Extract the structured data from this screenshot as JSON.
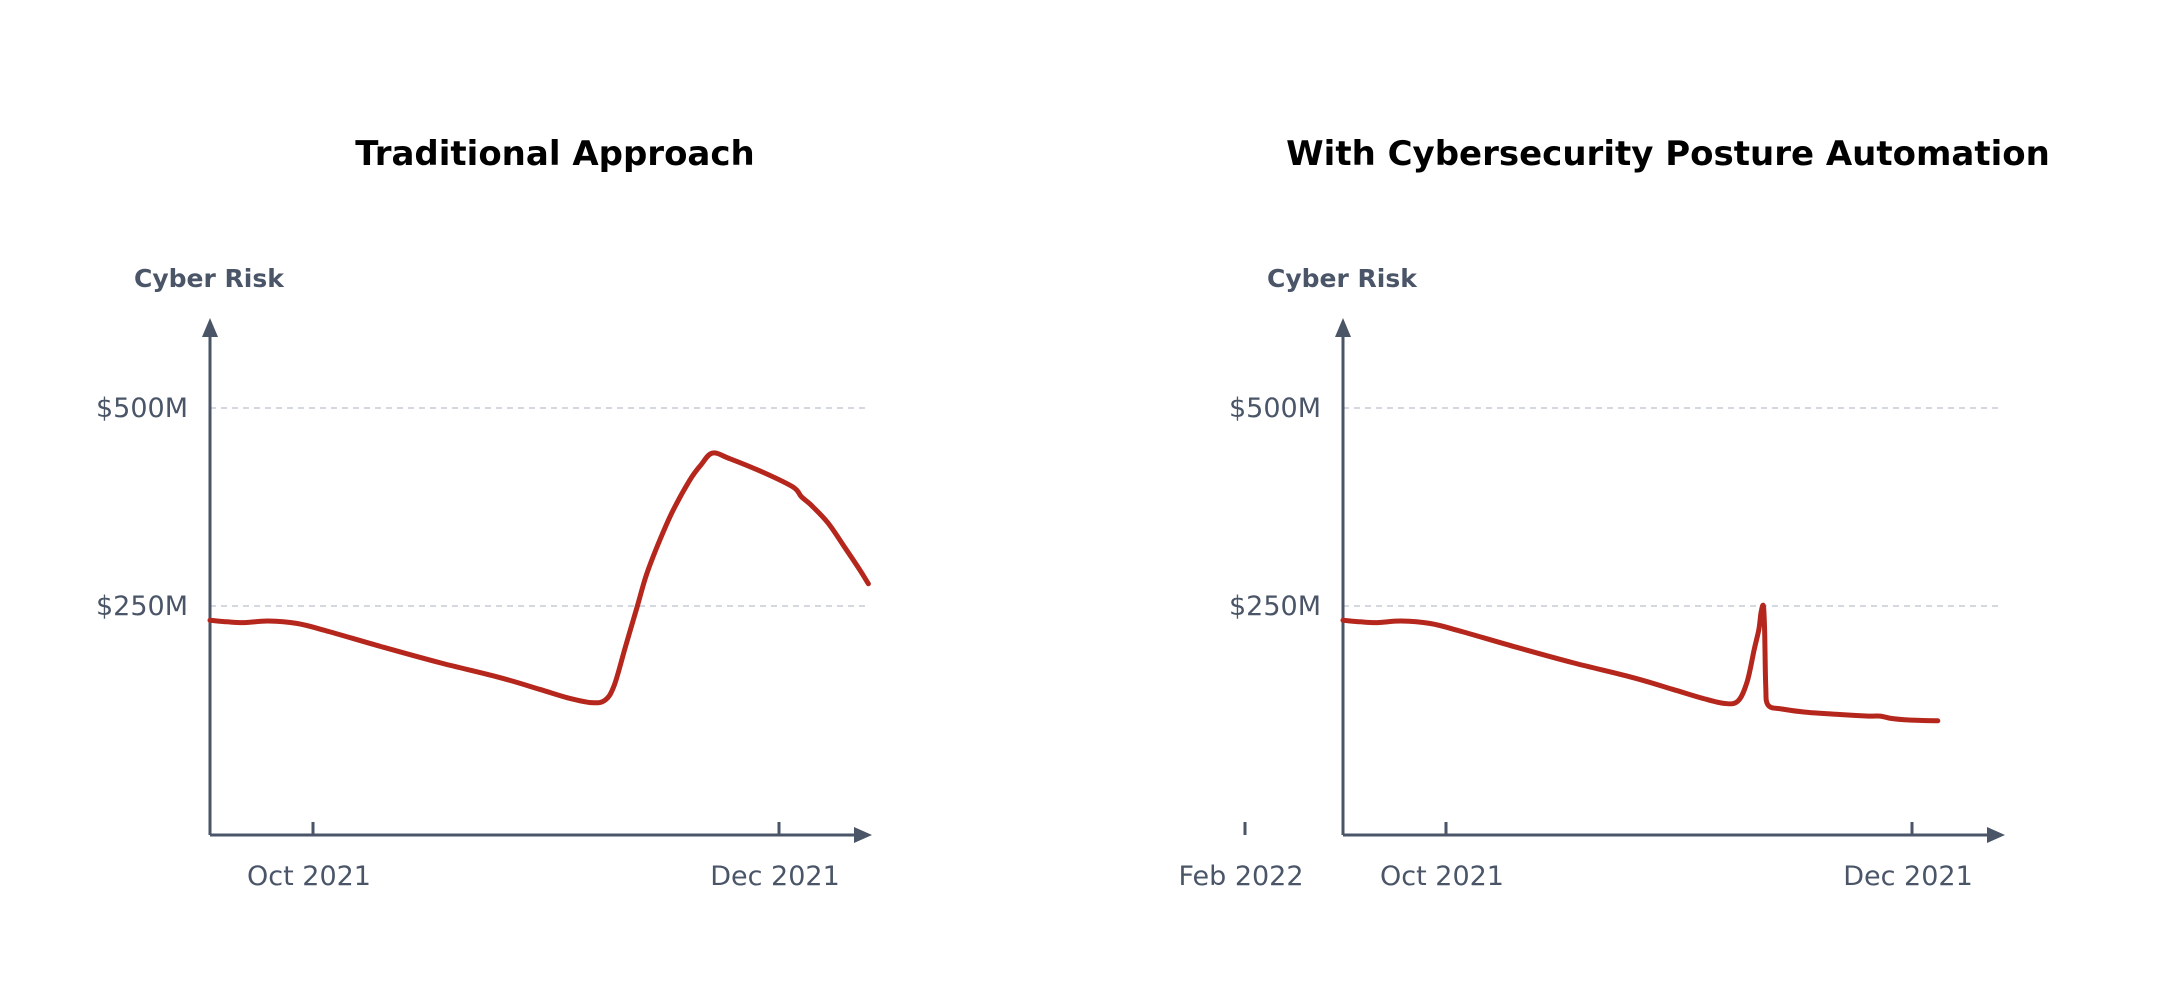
{
  "chart_data": [
    {
      "type": "line",
      "title": "Traditional Approach",
      "ylabel": "Cyber Risk",
      "xlabel": "",
      "x_ticks": [
        {
          "label": "Oct 2021",
          "value": 1.0
        },
        {
          "label": "Dec 2021",
          "value": 3.0
        },
        {
          "label": "Feb 2022",
          "value": 5.0
        }
      ],
      "y_ticks": [
        {
          "label": "$250M",
          "value": 250
        },
        {
          "label": "$500M",
          "value": 500
        }
      ],
      "xlim": [
        0.12,
        5.74
      ],
      "ylim": [
        -40,
        600
      ],
      "grid": "horizontal-dashed",
      "series": [
        {
          "name": "Cyber Risk",
          "color": "#b5271d",
          "points": [
            [
              0.0,
              232
            ],
            [
              0.15,
              230
            ],
            [
              0.3,
              229
            ],
            [
              0.5,
              231
            ],
            [
              0.75,
              228
            ],
            [
              1.0,
              219
            ],
            [
              1.5,
              198
            ],
            [
              2.0,
              178
            ],
            [
              2.5,
              160
            ],
            [
              2.85,
              145
            ],
            [
              3.1,
              134
            ],
            [
              3.3,
              128
            ],
            [
              3.42,
              131
            ],
            [
              3.5,
              150
            ],
            [
              3.6,
              200
            ],
            [
              3.7,
              250
            ],
            [
              3.78,
              290
            ],
            [
              3.88,
              328
            ],
            [
              4.0,
              368
            ],
            [
              4.15,
              408
            ],
            [
              4.25,
              428
            ],
            [
              4.35,
              443
            ],
            [
              4.5,
              436
            ],
            [
              4.8,
              418
            ],
            [
              5.05,
              400
            ],
            [
              5.12,
              388
            ],
            [
              5.2,
              378
            ],
            [
              5.35,
              355
            ],
            [
              5.5,
              323
            ],
            [
              5.62,
              297
            ],
            [
              5.7,
              278
            ]
          ]
        }
      ]
    },
    {
      "type": "line",
      "title": "With Cybersecurity Posture Automation",
      "ylabel": "Cyber Risk",
      "xlabel": "",
      "x_ticks": [
        {
          "label": "Oct 2021",
          "value": 1.0
        },
        {
          "label": "Dec 2021",
          "value": 3.0
        },
        {
          "label": "Feb 2022",
          "value": 5.0
        }
      ],
      "y_ticks": [
        {
          "label": "$250M",
          "value": 250
        },
        {
          "label": "$500M",
          "value": 500
        }
      ],
      "xlim": [
        0.12,
        5.74
      ],
      "ylim": [
        -40,
        600
      ],
      "grid": "horizontal-dashed",
      "series": [
        {
          "name": "Cyber Risk",
          "color": "#b5271d",
          "points": [
            [
              0.0,
              232
            ],
            [
              0.15,
              230
            ],
            [
              0.3,
              229
            ],
            [
              0.5,
              231
            ],
            [
              0.75,
              228
            ],
            [
              1.0,
              219
            ],
            [
              1.5,
              198
            ],
            [
              2.0,
              178
            ],
            [
              2.5,
              160
            ],
            [
              2.85,
              145
            ],
            [
              3.1,
              134
            ],
            [
              3.3,
              127
            ],
            [
              3.42,
              130
            ],
            [
              3.5,
              155
            ],
            [
              3.56,
              195
            ],
            [
              3.6,
              220
            ],
            [
              3.62,
              242
            ],
            [
              3.64,
              250
            ],
            [
              3.65,
              220
            ],
            [
              3.66,
              150
            ],
            [
              3.68,
              125
            ],
            [
              3.8,
              120
            ],
            [
              4.0,
              116
            ],
            [
              4.3,
              113
            ],
            [
              4.55,
              111
            ],
            [
              4.65,
              111
            ],
            [
              4.75,
              108
            ],
            [
              4.9,
              106
            ],
            [
              5.15,
              105
            ]
          ]
        }
      ]
    }
  ]
}
